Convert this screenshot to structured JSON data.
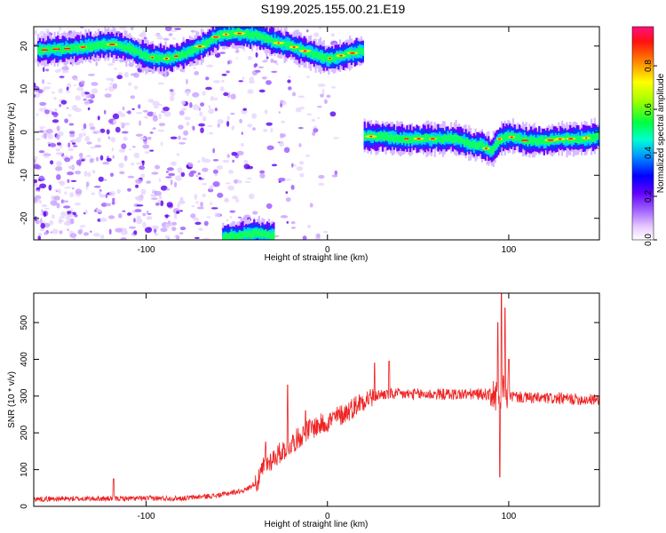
{
  "title": "S199.2025.155.00.21.E19",
  "chart_data": [
    {
      "type": "heatmap",
      "xlabel": "Height of straight line (km)",
      "ylabel": "Frequency (Hz)",
      "xlim": [
        -162,
        150
      ],
      "ylim": [
        -25,
        24.5
      ],
      "xticks": [
        -100,
        0,
        100
      ],
      "yticks": [
        -20,
        -10,
        0,
        10,
        20
      ],
      "colorbar": {
        "label": "Normalized spectral amplitude",
        "range": [
          0,
          0.98
        ],
        "ticks": [
          0.0,
          0.2,
          0.4,
          0.6,
          0.8
        ]
      },
      "ridges": [
        {
          "x": [
            -160,
            -140,
            -120,
            -110,
            -100,
            -90,
            -80,
            -70,
            -60,
            -50,
            -40,
            -30,
            -20,
            -10,
            0,
            10,
            20
          ],
          "y": [
            19,
            19.5,
            20.5,
            19.5,
            17.5,
            17,
            18,
            20,
            22.5,
            23,
            22.5,
            21,
            20,
            18.5,
            17,
            18,
            19
          ]
        },
        {
          "x": [
            20,
            30,
            40,
            50,
            60,
            70,
            80,
            85,
            90,
            95,
            100,
            110,
            120,
            130,
            140,
            150
          ],
          "y": [
            -1,
            -1,
            -1.5,
            -1.5,
            -1.5,
            -1.5,
            -3,
            -3,
            -4.5,
            -1.5,
            -1,
            -2,
            -2,
            -1.5,
            -1.5,
            -1
          ]
        },
        {
          "x": [
            -58,
            -50,
            -40,
            -30
          ],
          "y": [
            -24.5,
            -24,
            -23.5,
            -24
          ]
        }
      ]
    },
    {
      "type": "line",
      "xlabel": "Height of straight line (km)",
      "ylabel": "SNR (10 * v/v)",
      "xlim": [
        -162,
        150
      ],
      "ylim": [
        0,
        580
      ],
      "xticks": [
        -100,
        0,
        100
      ],
      "yticks": [
        0,
        100,
        200,
        300,
        400,
        500
      ],
      "color": "#ee2222",
      "envelope": {
        "x": [
          -162,
          -80,
          -60,
          -45,
          -38,
          -35,
          -30,
          -25,
          -20,
          -10,
          0,
          10,
          20,
          30,
          60,
          90,
          93,
          95,
          97,
          100,
          110,
          150
        ],
        "y": [
          20,
          22,
          30,
          45,
          70,
          110,
          130,
          150,
          170,
          210,
          230,
          255,
          290,
          305,
          305,
          305,
          300,
          260,
          330,
          300,
          295,
          290
        ]
      },
      "spikes": [
        {
          "x": -118,
          "y": 75
        },
        {
          "x": -34,
          "y": 175
        },
        {
          "x": -22,
          "y": 330
        },
        {
          "x": -12,
          "y": 260
        },
        {
          "x": 26,
          "y": 390
        },
        {
          "x": 34,
          "y": 395
        },
        {
          "x": 94,
          "y": 500
        },
        {
          "x": 95,
          "y": 80
        },
        {
          "x": 96,
          "y": 580
        },
        {
          "x": 98,
          "y": 540
        },
        {
          "x": 100,
          "y": 400
        }
      ]
    }
  ]
}
